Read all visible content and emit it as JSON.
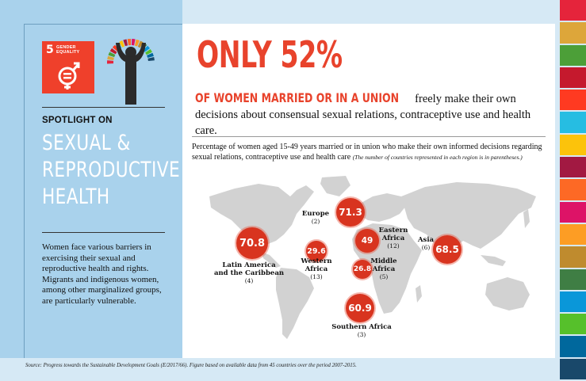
{
  "sdg_tile": {
    "number": "5",
    "title_line1": "GENDER",
    "title_line2": "EQUALITY",
    "color": "#ef402b",
    "icon": "gender-equality-icon"
  },
  "wheel_icon": "sdg-wheel-person-icon",
  "left": {
    "spotlight": "SPOTLIGHT ON",
    "title_line1": "SEXUAL &",
    "title_line2": "REPRODUCTIVE",
    "title_line3": "HEALTH",
    "body": "Women face various barriers in exercising their sexual and reproductive health and rights. Migrants and indigenous women, among other marginalized groups, are particularly vulnerable."
  },
  "main": {
    "headline": "ONLY 52%",
    "sub_highlight": "OF WOMEN MARRIED OR IN A UNION",
    "sub_rest": "freely make their own decisions about consensual sexual relations, contraceptive use and health care.",
    "description": "Percentage of women aged 15-49 years married or in union who make their own informed decisions regarding sexual relations, contraceptive use and health care",
    "description_note": "(The number of countries represented in each region is in parentheses.)"
  },
  "regions": [
    {
      "name": "Latin America and the Caribbean",
      "line1": "Latin America",
      "line2": "and the Caribbean",
      "value": "70.8",
      "count": "(4)"
    },
    {
      "name": "Europe",
      "line1": "Europe",
      "line2": "",
      "value": "71.3",
      "count": "(2)"
    },
    {
      "name": "Western Africa",
      "line1": "Western",
      "line2": "Africa",
      "value": "29.6",
      "count": "(13)"
    },
    {
      "name": "Eastern Africa",
      "line1": "Eastern",
      "line2": "Africa",
      "value": "49",
      "count": "(12)"
    },
    {
      "name": "Middle Africa",
      "line1": "Middle",
      "line2": "Africa",
      "value": "26.8",
      "count": "(5)"
    },
    {
      "name": "Southern Africa",
      "line1": "Southern Africa",
      "line2": "",
      "value": "60.9",
      "count": "(3)"
    },
    {
      "name": "Asia",
      "line1": "Asia",
      "line2": "",
      "value": "68.5",
      "count": "(6)"
    }
  ],
  "source": "Source: Progress towards the Sustainable Development Goals (E/2017/66). Figure based on available data from 45 countries over the period 2007-2015.",
  "colors": {
    "accent_red": "#e8432c",
    "bubble_red": "#d8341f",
    "left_panel": "#a9d2ec",
    "background": "#d6e9f5",
    "stripes": [
      "#e5243b",
      "#dda63a",
      "#4c9f38",
      "#c5192d",
      "#ff3a21",
      "#26bde2",
      "#fcc30b",
      "#a21942",
      "#fd6925",
      "#dd1367",
      "#fd9d24",
      "#bf8b2e",
      "#3f7e44",
      "#0a97d9",
      "#56c02b",
      "#00689d",
      "#19486a"
    ]
  }
}
